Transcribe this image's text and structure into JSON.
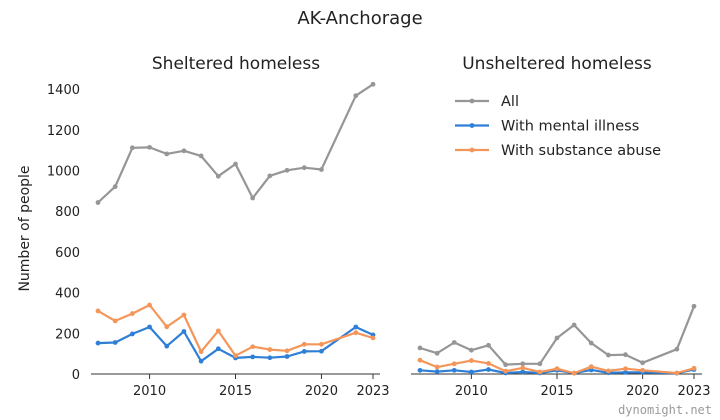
{
  "page": {
    "title": "AK-Anchorage",
    "watermark": "dynomight.net"
  },
  "chart_data": [
    {
      "type": "line",
      "title": "Sheltered homeless",
      "ylabel": "Number of people",
      "xlabel": "",
      "xlim": [
        2007,
        2023
      ],
      "ylim": [
        0,
        1450
      ],
      "x_ticks": [
        2010,
        2015,
        2020,
        2023
      ],
      "y_ticks": [
        0,
        200,
        400,
        600,
        800,
        1000,
        1200,
        1400
      ],
      "grid": false,
      "x": [
        2007,
        2008,
        2009,
        2010,
        2011,
        2012,
        2013,
        2014,
        2015,
        2016,
        2017,
        2018,
        2019,
        2020,
        2022,
        2023
      ],
      "series": [
        {
          "name": "All",
          "color": "#969696",
          "values": [
            843,
            921,
            1112,
            1114,
            1082,
            1097,
            1072,
            972,
            1032,
            865,
            974,
            1001,
            1014,
            1005,
            1368,
            1424
          ]
        },
        {
          "name": "With mental illness",
          "color": "#2f7fd6",
          "values": [
            152,
            155,
            197,
            231,
            137,
            209,
            63,
            124,
            79,
            84,
            80,
            86,
            111,
            112,
            231,
            192
          ]
        },
        {
          "name": "With substance abuse",
          "color": "#f4965a",
          "values": [
            310,
            261,
            297,
            339,
            232,
            290,
            110,
            212,
            90,
            134,
            120,
            114,
            146,
            146,
            203,
            177
          ]
        }
      ]
    },
    {
      "type": "line",
      "title": "Unsheltered homeless",
      "ylabel": "",
      "xlabel": "",
      "xlim": [
        2007,
        2023
      ],
      "ylim": [
        0,
        1450
      ],
      "x_ticks": [
        2010,
        2015,
        2020,
        2023
      ],
      "grid": false,
      "legend": "top",
      "x": [
        2007,
        2008,
        2009,
        2010,
        2011,
        2012,
        2013,
        2014,
        2015,
        2016,
        2017,
        2018,
        2019,
        2020,
        2022,
        2023
      ],
      "series": [
        {
          "name": "All",
          "color": "#969696",
          "values": [
            128,
            102,
            155,
            117,
            141,
            46,
            50,
            50,
            177,
            241,
            152,
            93,
            95,
            55,
            122,
            333
          ]
        },
        {
          "name": "With mental illness",
          "color": "#2f7fd6",
          "values": [
            18,
            12,
            18,
            10,
            22,
            5,
            10,
            5,
            18,
            4,
            20,
            6,
            8,
            8,
            4,
            22
          ]
        },
        {
          "name": "With substance abuse",
          "color": "#f4965a",
          "values": [
            68,
            34,
            50,
            66,
            52,
            14,
            30,
            10,
            26,
            4,
            36,
            15,
            26,
            18,
            5,
            28
          ]
        }
      ]
    }
  ]
}
